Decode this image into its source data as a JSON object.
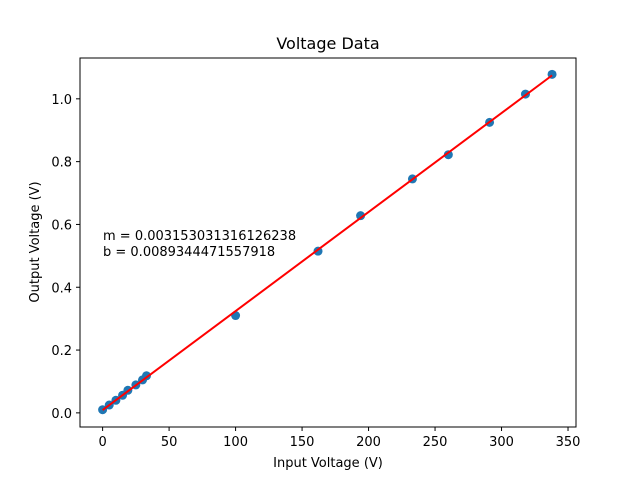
{
  "chart_data": {
    "type": "scatter",
    "title": "Voltage Data",
    "xlabel": "Input Voltage (V)",
    "ylabel": "Output Voltage (V)",
    "xlim": [
      -17,
      356
    ],
    "ylim": [
      -0.045,
      1.13
    ],
    "xticks": [
      0,
      50,
      100,
      150,
      200,
      250,
      300,
      350
    ],
    "xtick_labels": [
      "0",
      "50",
      "100",
      "150",
      "200",
      "250",
      "300",
      "350"
    ],
    "yticks": [
      0.0,
      0.2,
      0.4,
      0.6,
      0.8,
      1.0
    ],
    "ytick_labels": [
      "0.0",
      "0.2",
      "0.4",
      "0.6",
      "0.8",
      "1.0"
    ],
    "grid": false,
    "series": [
      {
        "kind": "scatter",
        "color": "#1f77b4",
        "points": [
          {
            "x": 0,
            "y": 0.01
          },
          {
            "x": 5,
            "y": 0.025
          },
          {
            "x": 10,
            "y": 0.04
          },
          {
            "x": 15,
            "y": 0.056
          },
          {
            "x": 19,
            "y": 0.072
          },
          {
            "x": 25,
            "y": 0.089
          },
          {
            "x": 30,
            "y": 0.105
          },
          {
            "x": 33,
            "y": 0.118
          },
          {
            "x": 100,
            "y": 0.31
          },
          {
            "x": 162,
            "y": 0.515
          },
          {
            "x": 194,
            "y": 0.628
          },
          {
            "x": 233,
            "y": 0.745
          },
          {
            "x": 260,
            "y": 0.822
          },
          {
            "x": 291,
            "y": 0.925
          },
          {
            "x": 318,
            "y": 1.015
          },
          {
            "x": 338,
            "y": 1.078
          }
        ]
      },
      {
        "kind": "fit-line",
        "color": "#ff0000",
        "slope": 0.003153031316126238,
        "intercept": 0.0089344471557918,
        "x_range": [
          0,
          338
        ]
      }
    ],
    "annotations": {
      "slope_text": "m = 0.003153031316126238",
      "intercept_text": "b = 0.0089344471557918"
    }
  }
}
